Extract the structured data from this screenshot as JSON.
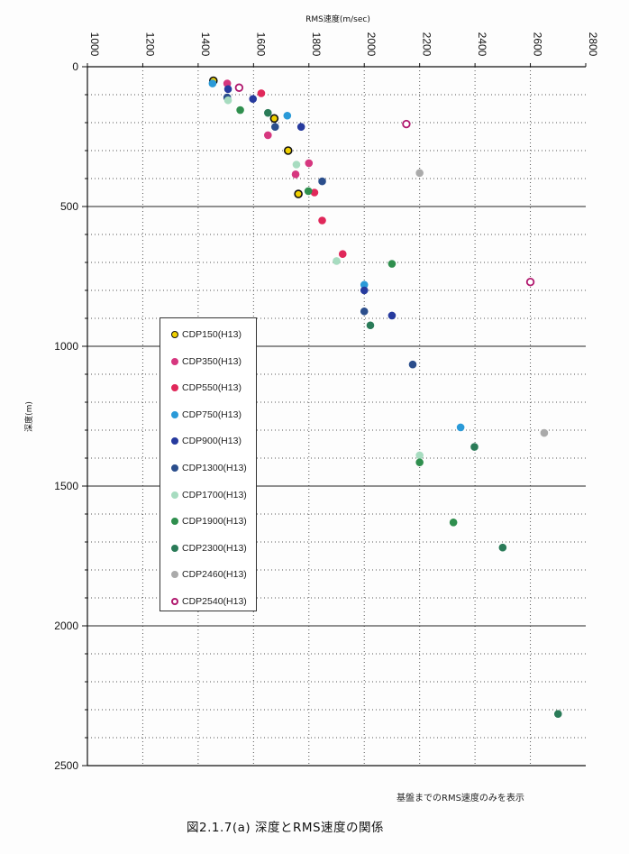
{
  "chart_data": {
    "type": "scatter",
    "xlabel": "RMS速度(m/sec)",
    "ylabel": "深度(m)",
    "xlim": [
      1000,
      2800
    ],
    "ylim": [
      0,
      2500
    ],
    "x_ticks": [
      "1000",
      "1200",
      "1400",
      "1600",
      "1800",
      "2000",
      "2200",
      "2400",
      "2600",
      "2800"
    ],
    "y_ticks": [
      "0",
      "500",
      "1000",
      "1500",
      "2000",
      "2500"
    ],
    "y_axis_inverted": true,
    "grid": true,
    "legend_position": "left-middle",
    "series": [
      {
        "name": "CDP150(H13)",
        "color": "#f0d000",
        "edge": "#111111",
        "hollow": false,
        "points": [
          [
            1455,
            50
          ],
          [
            1675,
            185
          ],
          [
            1725,
            300
          ],
          [
            1762,
            455
          ]
        ]
      },
      {
        "name": "CDP350(H13)",
        "color": "#d6377f",
        "edge": "#d6377f",
        "hollow": false,
        "points": [
          [
            1505,
            60
          ],
          [
            1652,
            245
          ],
          [
            1752,
            385
          ],
          [
            1800,
            345
          ]
        ]
      },
      {
        "name": "CDP550(H13)",
        "color": "#e0285a",
        "edge": "#e0285a",
        "hollow": false,
        "points": [
          [
            1628,
            95
          ],
          [
            1820,
            450
          ],
          [
            1848,
            550
          ],
          [
            1922,
            670
          ]
        ]
      },
      {
        "name": "CDP750(H13)",
        "color": "#2a9ad8",
        "edge": "#2a9ad8",
        "hollow": false,
        "points": [
          [
            1452,
            60
          ],
          [
            1722,
            175
          ],
          [
            2000,
            780
          ],
          [
            2348,
            1290
          ]
        ]
      },
      {
        "name": "CDP900(H13)",
        "color": "#263a9e",
        "edge": "#263a9e",
        "hollow": false,
        "points": [
          [
            1508,
            80
          ],
          [
            1598,
            115
          ],
          [
            1772,
            215
          ],
          [
            2000,
            800
          ],
          [
            2100,
            890
          ]
        ]
      },
      {
        "name": "CDP1300(H13)",
        "color": "#2b4e8c",
        "edge": "#2b4e8c",
        "hollow": false,
        "points": [
          [
            1505,
            110
          ],
          [
            1678,
            215
          ],
          [
            1848,
            410
          ],
          [
            2000,
            875
          ],
          [
            2175,
            1065
          ]
        ]
      },
      {
        "name": "CDP1700(H13)",
        "color": "#a7dcc0",
        "edge": "#a7dcc0",
        "hollow": false,
        "points": [
          [
            1508,
            120
          ],
          [
            1755,
            350
          ],
          [
            1900,
            695
          ],
          [
            2200,
            1390
          ]
        ]
      },
      {
        "name": "CDP1900(H13)",
        "color": "#2f8f4e",
        "edge": "#2f8f4e",
        "hollow": false,
        "points": [
          [
            1552,
            155
          ],
          [
            1798,
            445
          ],
          [
            2100,
            705
          ],
          [
            2200,
            1415
          ],
          [
            2322,
            1630
          ]
        ]
      },
      {
        "name": "CDP2300(H13)",
        "color": "#2a7b58",
        "edge": "#2a7b58",
        "hollow": false,
        "points": [
          [
            1652,
            165
          ],
          [
            2022,
            925
          ],
          [
            2398,
            1360
          ],
          [
            2500,
            1720
          ],
          [
            2700,
            2315
          ]
        ]
      },
      {
        "name": "CDP2460(H13)",
        "color": "#aaaaaa",
        "edge": "#aaaaaa",
        "hollow": false,
        "points": [
          [
            2200,
            380
          ],
          [
            2650,
            1310
          ]
        ]
      },
      {
        "name": "CDP2540(H13)",
        "color": "#ffffff",
        "edge": "#b0186e",
        "hollow": true,
        "points": [
          [
            1548,
            75
          ],
          [
            2152,
            205
          ],
          [
            2600,
            770
          ]
        ]
      }
    ],
    "note": "基盤までのRMS速度のみを表示",
    "caption": "図2.1.7(a)  深度とRMS速度の関係"
  }
}
